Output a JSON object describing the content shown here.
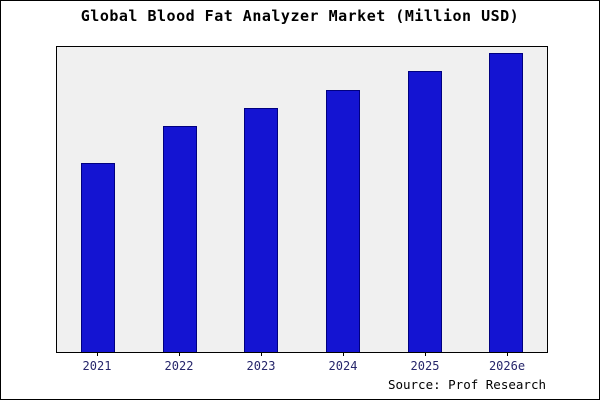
{
  "chart_data": {
    "type": "bar",
    "title": "Global Blood Fat Analyzer Market (Million USD)",
    "categories": [
      "2021",
      "2022",
      "2023",
      "2024",
      "2025",
      "2026e"
    ],
    "values": [
      62,
      74,
      80,
      86,
      92,
      98
    ],
    "xlabel": "",
    "ylabel": "",
    "ylim": [
      0,
      100
    ],
    "grid": false,
    "legend": false,
    "plot_background": "#f0f0f0"
  },
  "source": "Source: Prof Research",
  "colors": {
    "bar_fill": "#1414d2",
    "bar_edge": "#000080",
    "tick_label_color": "#26266b"
  }
}
